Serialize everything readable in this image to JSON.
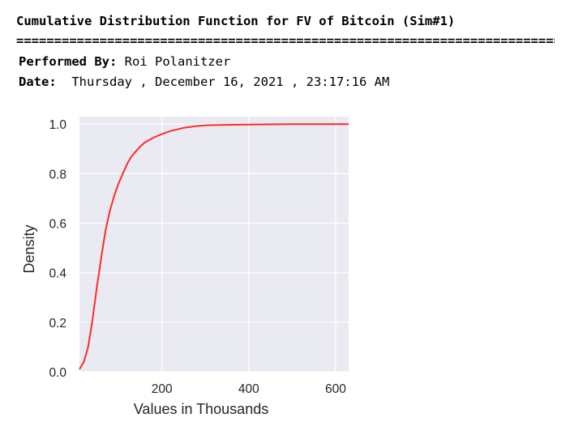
{
  "header": {
    "title": "Cumulative Distribution Function for FV of Bitcoin (Sim#1)",
    "separator": "================================================================================",
    "performed_by_label": "Performed By:",
    "performed_by_value": " Roi Polanitzer",
    "date_label": "Date:",
    "date_value": "  Thursday , December 16, 2021 , 23:17:16 AM"
  },
  "chart_data": {
    "type": "line",
    "title": "",
    "xlabel": "Values in Thousands",
    "ylabel": "Density",
    "xlim": [
      10,
      630
    ],
    "ylim": [
      0,
      1.03
    ],
    "xticks": [
      200,
      400,
      600
    ],
    "yticks": [
      0.0,
      0.2,
      0.4,
      0.6,
      0.8,
      1.0
    ],
    "ytick_labels": [
      "0.0",
      "0.2",
      "0.4",
      "0.6",
      "0.8",
      "1.0"
    ],
    "grid": true,
    "background": "#eaeaf2",
    "series": [
      {
        "color": "#ff2a2a",
        "x": [
          10,
          20,
          30,
          40,
          50,
          60,
          70,
          80,
          90,
          100,
          110,
          120,
          130,
          140,
          150,
          160,
          180,
          200,
          220,
          250,
          280,
          300,
          350,
          400,
          450,
          500,
          550,
          600,
          630
        ],
        "y": [
          0.01,
          0.04,
          0.1,
          0.21,
          0.34,
          0.46,
          0.57,
          0.65,
          0.71,
          0.76,
          0.8,
          0.84,
          0.87,
          0.89,
          0.91,
          0.925,
          0.945,
          0.96,
          0.972,
          0.985,
          0.992,
          0.995,
          0.997,
          0.998,
          0.999,
          0.9995,
          0.9998,
          1.0,
          1.0
        ]
      }
    ]
  }
}
